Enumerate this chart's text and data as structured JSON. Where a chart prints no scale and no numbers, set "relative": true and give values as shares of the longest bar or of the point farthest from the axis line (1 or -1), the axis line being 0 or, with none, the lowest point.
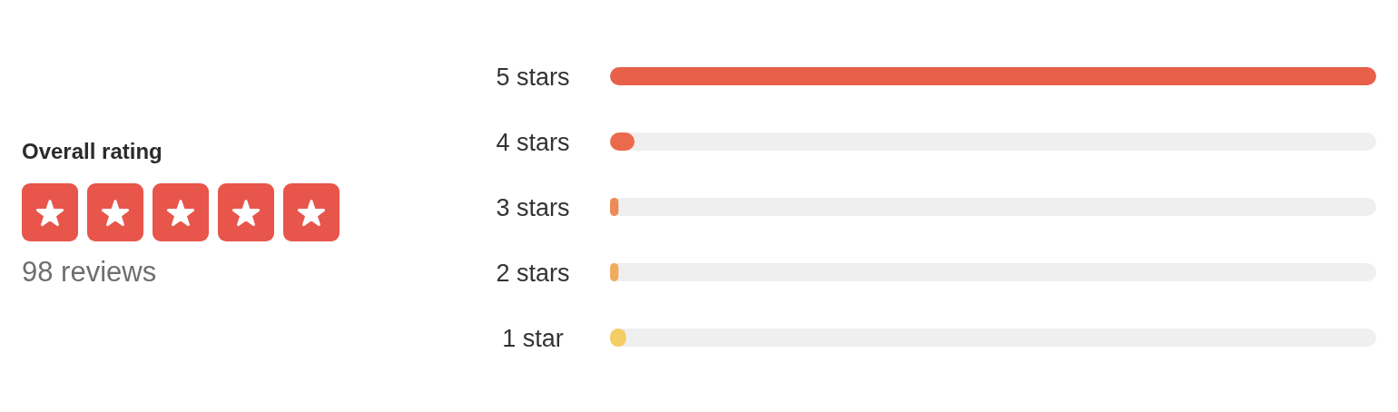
{
  "chart_data": {
    "type": "bar",
    "orientation": "horizontal",
    "relative": true,
    "title": "Overall rating",
    "annotations": [
      "98 reviews"
    ],
    "categories": [
      "5 stars",
      "4 stars",
      "3 stars",
      "2 stars",
      "1 star"
    ],
    "values": [
      1,
      0.032,
      0.011,
      0.011,
      0.021
    ],
    "colors": [
      "#e8604a",
      "#ec6a4c",
      "#ec8b58",
      "#efac5f",
      "#f4cd66"
    ]
  }
}
